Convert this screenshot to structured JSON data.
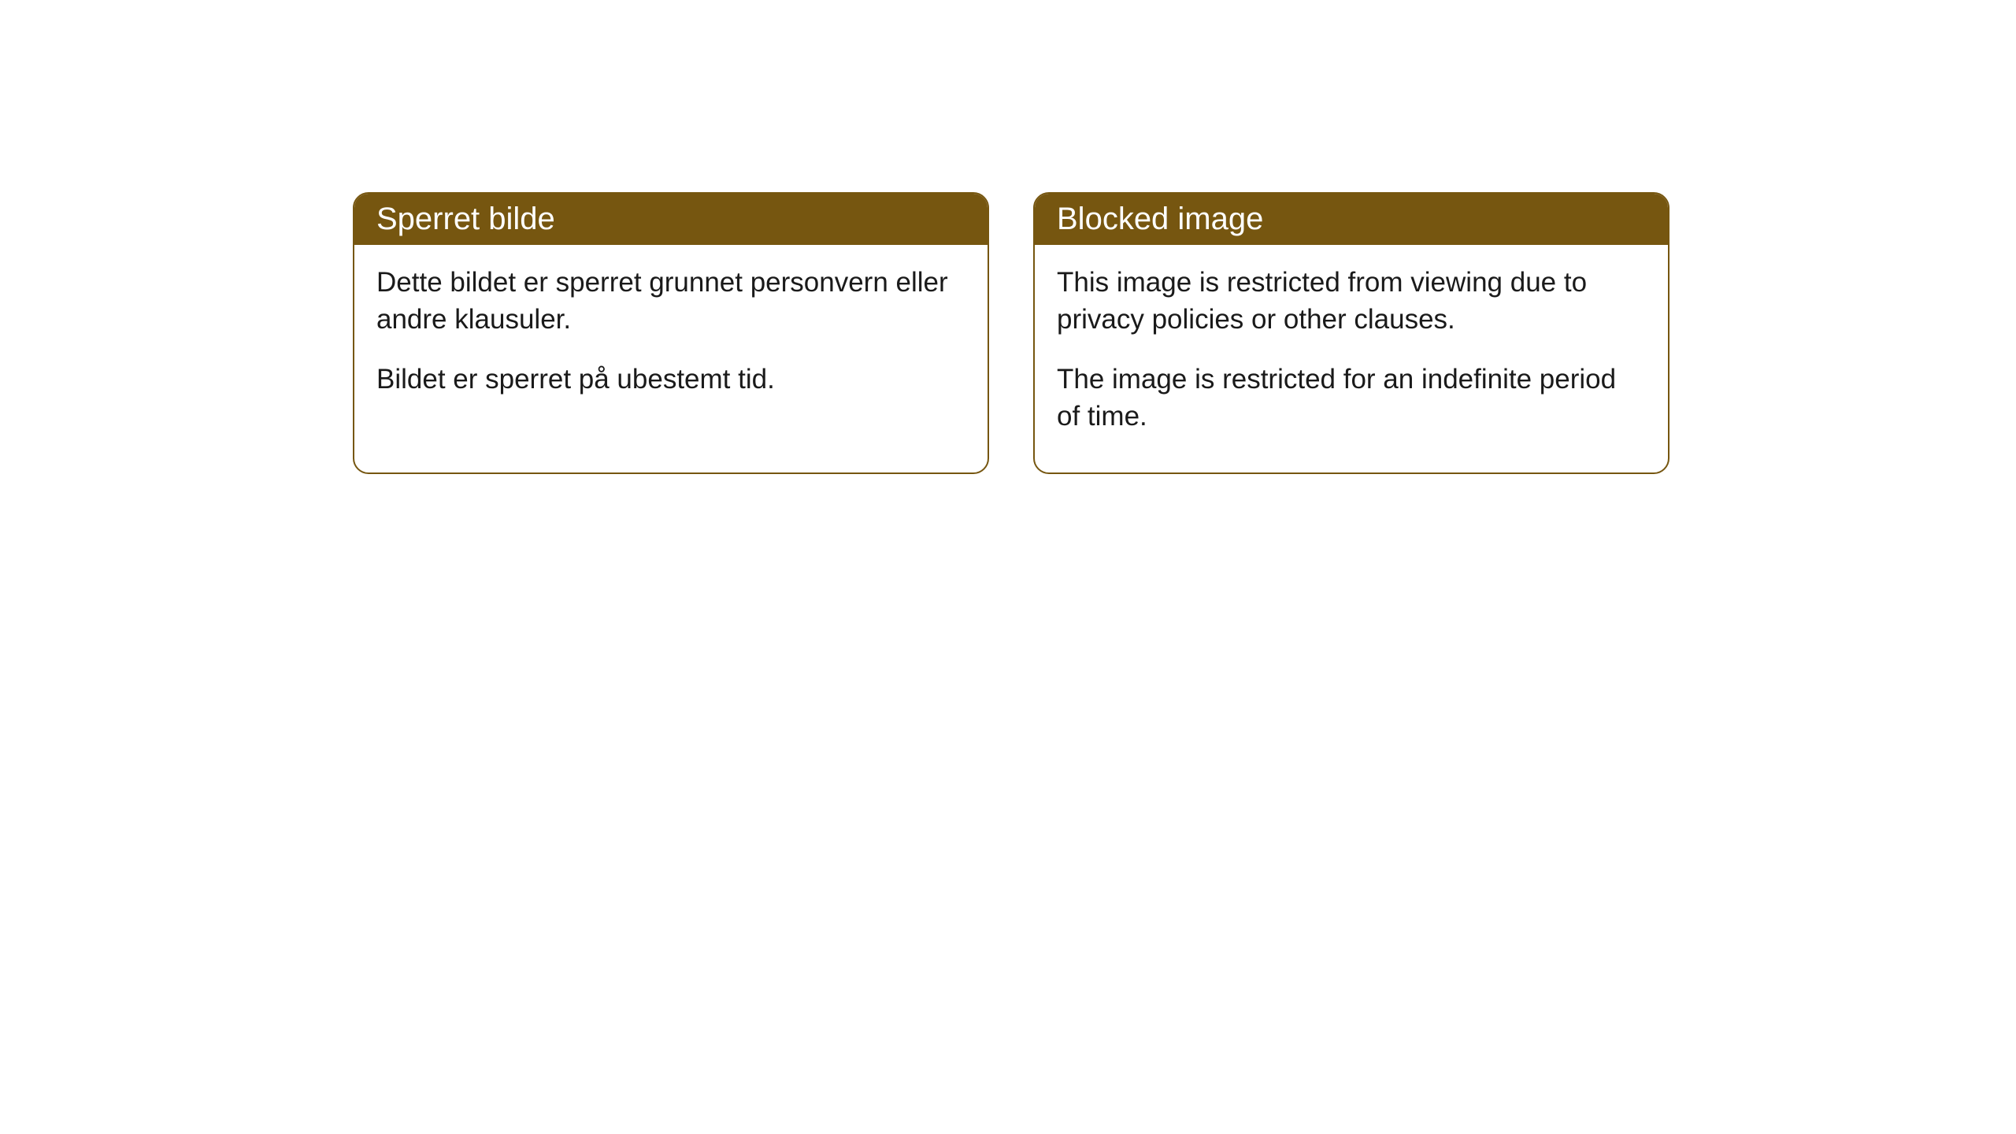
{
  "cards": [
    {
      "title": "Sperret bilde",
      "paragraph1": "Dette bildet er sperret grunnet personvern eller andre klausuler.",
      "paragraph2": "Bildet er sperret på ubestemt tid."
    },
    {
      "title": "Blocked image",
      "paragraph1": "This image is restricted from viewing due to privacy policies or other clauses.",
      "paragraph2": "The image is restricted for an indefinite period of time."
    }
  ],
  "styling": {
    "header_background": "#765610",
    "header_text_color": "#ffffff",
    "border_color": "#765610",
    "body_text_color": "#1a1a1a",
    "page_background": "#ffffff",
    "border_radius": 20,
    "header_fontsize": 40,
    "body_fontsize": 35
  }
}
